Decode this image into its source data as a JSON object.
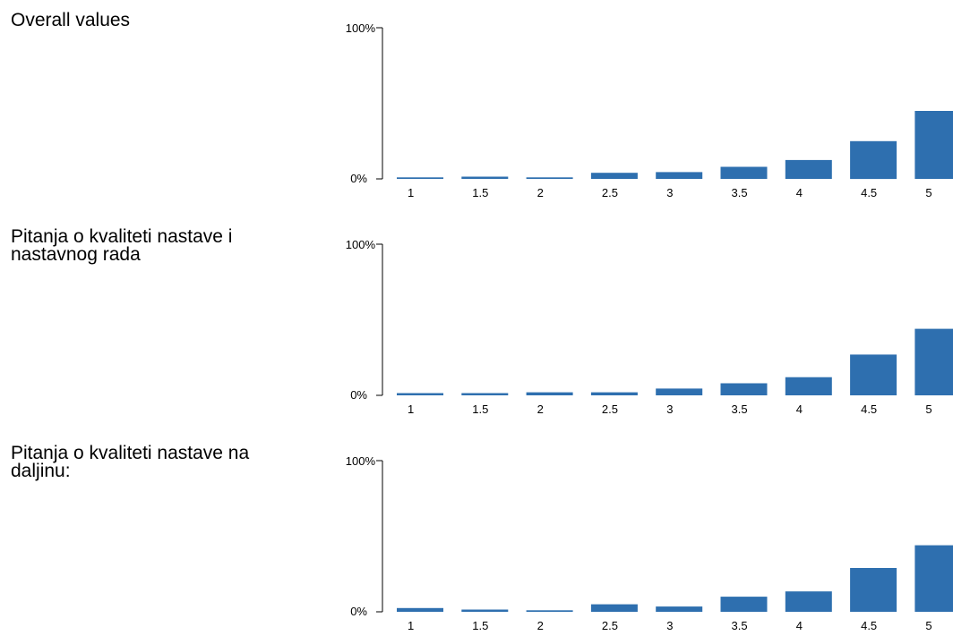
{
  "bar_color": "#2e6faf",
  "axis_color": "#000000",
  "chart_data": [
    {
      "type": "bar",
      "title": "Overall values",
      "categories": [
        "1",
        "1.5",
        "2",
        "2.5",
        "3",
        "3.5",
        "4",
        "4.5",
        "5"
      ],
      "values": [
        1,
        1.5,
        1,
        4,
        4.5,
        8,
        12.5,
        25,
        45
      ],
      "ylim": [
        0,
        100
      ],
      "y_tick_labels": [
        "100%",
        "0%"
      ],
      "grid": false,
      "legend": "none"
    },
    {
      "type": "bar",
      "title": "Pitanja o kvaliteti nastave i\nnastavnog rada",
      "categories": [
        "1",
        "1.5",
        "2",
        "2.5",
        "3",
        "3.5",
        "4",
        "4.5",
        "5"
      ],
      "values": [
        1.5,
        1.5,
        2,
        2,
        4.5,
        8,
        12,
        27,
        44
      ],
      "ylim": [
        0,
        100
      ],
      "y_tick_labels": [
        "100%",
        "0%"
      ],
      "grid": false,
      "legend": "none"
    },
    {
      "type": "bar",
      "title": "Pitanja o kvaliteti nastave na\ndaljinu:",
      "categories": [
        "1",
        "1.5",
        "2",
        "2.5",
        "3",
        "3.5",
        "4",
        "4.5",
        "5"
      ],
      "values": [
        2.5,
        1.5,
        1,
        5,
        3.5,
        10,
        13.5,
        29,
        44
      ],
      "ylim": [
        0,
        100
      ],
      "y_tick_labels": [
        "100%",
        "0%"
      ],
      "grid": false,
      "legend": "none"
    }
  ]
}
